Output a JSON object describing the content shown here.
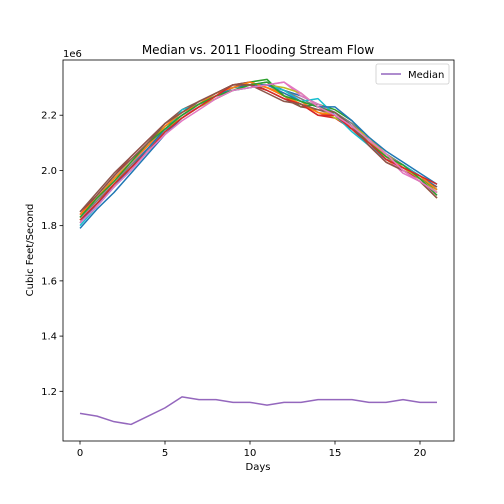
{
  "chart_data": {
    "type": "line",
    "title": "Median vs. 2011 Flooding Stream Flow",
    "xlabel": "Days",
    "ylabel": "Cubic Feet/Second",
    "y_offset_label": "1e6",
    "xlim": [
      -1,
      22
    ],
    "ylim": [
      1.02,
      2.4
    ],
    "x_ticks": [
      0,
      5,
      10,
      15,
      20
    ],
    "y_ticks": [
      1.2,
      1.4,
      1.6,
      1.8,
      2.0,
      2.2
    ],
    "y_tick_labels": [
      "1.2",
      "1.4",
      "1.6",
      "1.8",
      "2.0",
      "2.2"
    ],
    "legend": {
      "placement": "top-right",
      "entries": [
        "Median"
      ]
    },
    "grid": false,
    "x": [
      0,
      1,
      2,
      3,
      4,
      5,
      6,
      7,
      8,
      9,
      10,
      11,
      12,
      13,
      14,
      15,
      16,
      17,
      18,
      19,
      20,
      21
    ],
    "series": [
      {
        "name": "Median",
        "color": "#9467bd",
        "values": [
          1.12,
          1.11,
          1.09,
          1.08,
          1.11,
          1.14,
          1.18,
          1.17,
          1.17,
          1.16,
          1.16,
          1.15,
          1.16,
          1.16,
          1.17,
          1.17,
          1.17,
          1.16,
          1.16,
          1.17,
          1.16,
          1.16
        ]
      },
      {
        "color": "#1f77b4",
        "values": [
          1.79,
          1.86,
          1.92,
          1.99,
          2.06,
          2.13,
          2.19,
          2.23,
          2.26,
          2.29,
          2.31,
          2.32,
          2.29,
          2.27,
          2.24,
          2.21,
          2.16,
          2.11,
          2.06,
          2.02,
          1.98,
          1.94
        ]
      },
      {
        "color": "#ff7f0e",
        "values": [
          1.81,
          1.88,
          1.95,
          2.01,
          2.07,
          2.14,
          2.19,
          2.23,
          2.27,
          2.3,
          2.32,
          2.3,
          2.28,
          2.25,
          2.21,
          2.19,
          2.15,
          2.1,
          2.04,
          2.0,
          1.96,
          1.9
        ]
      },
      {
        "color": "#2ca02c",
        "values": [
          1.83,
          1.9,
          1.97,
          2.03,
          2.1,
          2.16,
          2.2,
          2.24,
          2.28,
          2.3,
          2.32,
          2.33,
          2.27,
          2.23,
          2.24,
          2.22,
          2.18,
          2.11,
          2.05,
          2.01,
          1.97,
          1.93
        ]
      },
      {
        "color": "#d62728",
        "values": [
          1.84,
          1.91,
          1.98,
          2.05,
          2.11,
          2.17,
          2.21,
          2.25,
          2.28,
          2.31,
          2.32,
          2.3,
          2.27,
          2.24,
          2.2,
          2.19,
          2.15,
          2.09,
          2.03,
          2.0,
          1.97,
          1.92
        ]
      },
      {
        "color": "#8c564b",
        "values": [
          1.85,
          1.92,
          1.99,
          2.05,
          2.11,
          2.17,
          2.22,
          2.25,
          2.28,
          2.31,
          2.32,
          2.29,
          2.26,
          2.23,
          2.22,
          2.2,
          2.15,
          2.09,
          2.04,
          2.01,
          1.97,
          1.94
        ]
      },
      {
        "color": "#e377c2",
        "values": [
          1.82,
          1.89,
          1.96,
          2.02,
          2.09,
          2.15,
          2.2,
          2.23,
          2.26,
          2.3,
          2.31,
          2.31,
          2.32,
          2.27,
          2.24,
          2.21,
          2.17,
          2.11,
          2.05,
          1.99,
          1.96,
          1.91
        ]
      },
      {
        "color": "#7f7f7f",
        "values": [
          1.83,
          1.89,
          1.95,
          2.02,
          2.08,
          2.14,
          2.19,
          2.23,
          2.27,
          2.29,
          2.3,
          2.31,
          2.29,
          2.26,
          2.23,
          2.21,
          2.17,
          2.11,
          2.06,
          2.02,
          1.98,
          1.93
        ]
      },
      {
        "color": "#bcbd22",
        "values": [
          1.82,
          1.88,
          1.95,
          2.01,
          2.08,
          2.15,
          2.19,
          2.23,
          2.26,
          2.29,
          2.31,
          2.31,
          2.3,
          2.28,
          2.23,
          2.19,
          2.16,
          2.12,
          2.06,
          2.01,
          1.97,
          1.92
        ]
      },
      {
        "color": "#17becf",
        "values": [
          1.8,
          1.87,
          1.94,
          2.0,
          2.07,
          2.14,
          2.22,
          2.24,
          2.27,
          2.29,
          2.3,
          2.31,
          2.29,
          2.25,
          2.26,
          2.2,
          2.14,
          2.09,
          2.04,
          2.02,
          1.98,
          1.93
        ]
      },
      {
        "color": "#1f77b4",
        "values": [
          1.81,
          1.88,
          1.94,
          2.01,
          2.08,
          2.15,
          2.2,
          2.24,
          2.27,
          2.3,
          2.31,
          2.31,
          2.28,
          2.25,
          2.23,
          2.23,
          2.18,
          2.12,
          2.07,
          2.03,
          1.99,
          1.95
        ]
      },
      {
        "color": "#ff7f0e",
        "values": [
          1.84,
          1.9,
          1.97,
          2.03,
          2.09,
          2.16,
          2.21,
          2.24,
          2.28,
          2.3,
          2.32,
          2.3,
          2.27,
          2.24,
          2.21,
          2.2,
          2.16,
          2.11,
          2.05,
          2.01,
          1.98,
          1.93
        ]
      },
      {
        "color": "#2ca02c",
        "values": [
          1.83,
          1.9,
          1.96,
          2.03,
          2.1,
          2.15,
          2.2,
          2.24,
          2.27,
          2.29,
          2.31,
          2.32,
          2.27,
          2.25,
          2.23,
          2.21,
          2.16,
          2.1,
          2.05,
          2.02,
          1.97,
          1.91
        ]
      },
      {
        "color": "#d62728",
        "values": [
          1.82,
          1.88,
          1.95,
          2.01,
          2.07,
          2.14,
          2.19,
          2.23,
          2.27,
          2.31,
          2.31,
          2.29,
          2.26,
          2.24,
          2.2,
          2.2,
          2.15,
          2.1,
          2.04,
          2.01,
          1.98,
          1.95
        ]
      },
      {
        "color": "#8c564b",
        "values": [
          1.85,
          1.91,
          1.98,
          2.04,
          2.1,
          2.17,
          2.21,
          2.25,
          2.28,
          2.31,
          2.31,
          2.28,
          2.25,
          2.24,
          2.22,
          2.21,
          2.16,
          2.09,
          2.03,
          2.0,
          1.96,
          1.9
        ]
      },
      {
        "color": "#e377c2",
        "values": [
          1.81,
          1.87,
          1.94,
          2.0,
          2.07,
          2.13,
          2.18,
          2.22,
          2.26,
          2.29,
          2.3,
          2.31,
          2.32,
          2.28,
          2.23,
          2.2,
          2.16,
          2.11,
          2.06,
          2.0,
          1.96,
          1.92
        ]
      }
    ]
  }
}
